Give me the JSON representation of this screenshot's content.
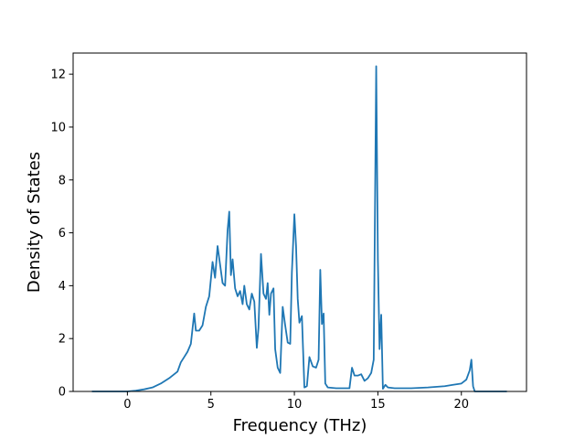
{
  "chart_data": {
    "type": "line",
    "title": "",
    "xlabel": "Frequency (THz)",
    "ylabel": "Density of States",
    "xlim": [
      -3.25,
      23.9
    ],
    "ylim": [
      0,
      12.8
    ],
    "xticks": [
      0,
      5,
      10,
      15,
      20
    ],
    "yticks": [
      0,
      2,
      4,
      6,
      8,
      10,
      12
    ],
    "grid": false,
    "legend": "none",
    "series": [
      {
        "color": "#1f77b4",
        "x": [
          -2.1,
          -1.5,
          -1.0,
          -0.5,
          0.0,
          0.5,
          1.0,
          1.5,
          2.0,
          2.5,
          3.0,
          3.2,
          3.4,
          3.6,
          3.8,
          4.0,
          4.1,
          4.3,
          4.5,
          4.7,
          4.9,
          5.1,
          5.25,
          5.4,
          5.55,
          5.7,
          5.85,
          6.0,
          6.1,
          6.2,
          6.3,
          6.45,
          6.6,
          6.75,
          6.9,
          7.0,
          7.15,
          7.3,
          7.45,
          7.6,
          7.75,
          7.85,
          8.0,
          8.15,
          8.3,
          8.4,
          8.5,
          8.6,
          8.75,
          8.85,
          9.0,
          9.15,
          9.3,
          9.45,
          9.6,
          9.75,
          9.85,
          10.0,
          10.1,
          10.2,
          10.3,
          10.45,
          10.6,
          10.75,
          10.9,
          11.1,
          11.3,
          11.45,
          11.55,
          11.65,
          11.75,
          11.85,
          12.0,
          12.5,
          13.0,
          13.3,
          13.45,
          13.6,
          13.8,
          14.0,
          14.2,
          14.4,
          14.6,
          14.75,
          14.9,
          15.0,
          15.1,
          15.2,
          15.3,
          15.45,
          15.6,
          16.0,
          17.0,
          18.0,
          19.0,
          19.5,
          20.0,
          20.3,
          20.5,
          20.6,
          20.7,
          20.8,
          21.5,
          22.0,
          22.7
        ],
        "y": [
          0.0,
          0.0,
          0.0,
          0.0,
          0.0,
          0.03,
          0.08,
          0.15,
          0.3,
          0.5,
          0.75,
          1.1,
          1.3,
          1.5,
          1.8,
          2.95,
          2.3,
          2.3,
          2.5,
          3.2,
          3.6,
          4.9,
          4.3,
          5.5,
          4.8,
          4.1,
          4.0,
          6.1,
          6.8,
          4.4,
          5.0,
          3.9,
          3.6,
          3.8,
          3.3,
          4.0,
          3.3,
          3.1,
          3.7,
          3.4,
          1.65,
          2.4,
          5.2,
          3.7,
          3.5,
          4.1,
          2.9,
          3.7,
          3.9,
          1.6,
          0.9,
          0.7,
          3.2,
          2.5,
          1.85,
          1.8,
          4.5,
          6.7,
          5.5,
          3.5,
          2.6,
          2.85,
          0.15,
          0.2,
          1.3,
          0.95,
          0.9,
          1.2,
          4.6,
          2.55,
          2.95,
          0.3,
          0.15,
          0.12,
          0.12,
          0.12,
          0.9,
          0.6,
          0.6,
          0.65,
          0.4,
          0.5,
          0.7,
          1.2,
          12.3,
          5.0,
          1.6,
          2.9,
          0.1,
          0.25,
          0.15,
          0.12,
          0.12,
          0.15,
          0.2,
          0.25,
          0.3,
          0.45,
          0.8,
          1.2,
          0.2,
          0.0,
          0.0,
          0.0,
          0.0
        ]
      }
    ]
  }
}
